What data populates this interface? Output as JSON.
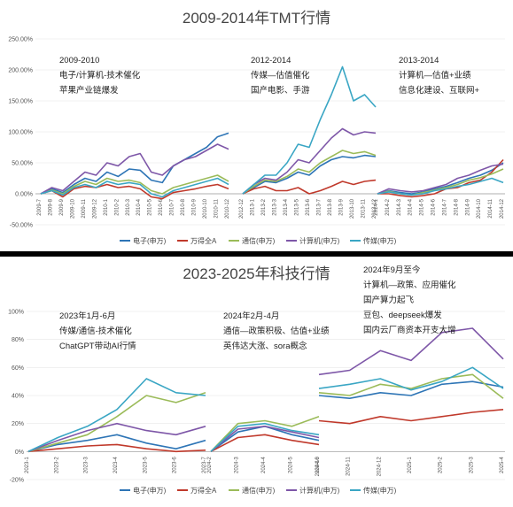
{
  "chart_data": [
    {
      "type": "line",
      "title": "2009-2014年TMT行情",
      "yticks": [
        "250.00%",
        "200.00%",
        "150.00%",
        "100.00%",
        "50.00%",
        "0.00%",
        "-50.00%"
      ],
      "ylim": [
        -50,
        250
      ],
      "grid": true,
      "legend_position": "bottom",
      "segments": [
        {
          "x": [
            "2009-7",
            "2009-8",
            "2009-9",
            "2009-10",
            "2009-11",
            "2009-12",
            "2010-1",
            "2010-2",
            "2010-3",
            "2010-4",
            "2010-5",
            "2010-6",
            "2010-7",
            "2010-8",
            "2010-9",
            "2010-10",
            "2010-11",
            "2010-12"
          ],
          "annotation": [
            "2009-2010",
            "电子/计算机-技术催化",
            "苹果产业链爆发"
          ],
          "series": [
            {
              "name": "电子(申万)",
              "values": [
                0,
                8,
                2,
                15,
                25,
                20,
                35,
                28,
                40,
                38,
                22,
                18,
                45,
                55,
                65,
                75,
                92,
                98
              ]
            },
            {
              "name": "万得全A",
              "values": [
                0,
                5,
                -5,
                8,
                12,
                10,
                15,
                10,
                12,
                8,
                -5,
                -8,
                2,
                5,
                8,
                12,
                15,
                8
              ]
            },
            {
              "name": "通信(申万)",
              "values": [
                0,
                6,
                0,
                12,
                20,
                15,
                25,
                20,
                22,
                18,
                5,
                0,
                10,
                15,
                20,
                25,
                30,
                20
              ]
            },
            {
              "name": "计算机(申万)",
              "values": [
                0,
                10,
                5,
                20,
                35,
                30,
                50,
                45,
                60,
                65,
                35,
                30,
                45,
                55,
                60,
                70,
                80,
                72
              ]
            },
            {
              "name": "传媒(申万)",
              "values": [
                0,
                5,
                -2,
                10,
                15,
                10,
                20,
                15,
                18,
                15,
                0,
                -5,
                5,
                10,
                15,
                20,
                25,
                15
              ]
            }
          ]
        },
        {
          "x": [
            "2012-12",
            "2013-1",
            "2013-2",
            "2013-3",
            "2013-4",
            "2013-5",
            "2013-6",
            "2013-7",
            "2013-8",
            "2013-9",
            "2013-10",
            "2013-11",
            "2013-12"
          ],
          "annotation": [
            "2012-2014",
            "传媒—估值催化",
            "国产电影、手游"
          ],
          "series": [
            {
              "name": "电子(申万)",
              "values": [
                0,
                10,
                20,
                18,
                25,
                35,
                30,
                45,
                55,
                60,
                58,
                62,
                60
              ]
            },
            {
              "name": "万得全A",
              "values": [
                0,
                8,
                12,
                5,
                5,
                10,
                0,
                5,
                12,
                20,
                15,
                20,
                22
              ]
            },
            {
              "name": "通信(申万)",
              "values": [
                0,
                12,
                22,
                20,
                28,
                40,
                35,
                50,
                60,
                70,
                65,
                68,
                62
              ]
            },
            {
              "name": "计算机(申万)",
              "values": [
                0,
                15,
                25,
                22,
                35,
                55,
                50,
                70,
                90,
                105,
                95,
                100,
                98
              ]
            },
            {
              "name": "传媒(申万)",
              "values": [
                0,
                15,
                30,
                30,
                50,
                80,
                75,
                120,
                160,
                205,
                150,
                160,
                140
              ]
            }
          ]
        },
        {
          "x": [
            "2014-1",
            "2014-2",
            "2014-3",
            "2014-4",
            "2014-5",
            "2014-6",
            "2014-7",
            "2014-8",
            "2014-9",
            "2014-10",
            "2014-11",
            "2014-12"
          ],
          "annotation": [
            "2013-2014",
            "计算机—估值+业绩",
            "信息化建设、互联网+"
          ],
          "series": [
            {
              "name": "电子(申万)",
              "values": [
                0,
                5,
                2,
                0,
                3,
                8,
                12,
                18,
                25,
                30,
                38,
                50
              ]
            },
            {
              "name": "万得全A",
              "values": [
                0,
                0,
                -3,
                -5,
                -3,
                0,
                8,
                10,
                18,
                22,
                35,
                55
              ]
            },
            {
              "name": "通信(申万)",
              "values": [
                0,
                4,
                0,
                -2,
                2,
                6,
                10,
                15,
                22,
                26,
                32,
                40
              ]
            },
            {
              "name": "计算机(申万)",
              "values": [
                0,
                8,
                5,
                3,
                5,
                10,
                15,
                25,
                30,
                38,
                45,
                48
              ]
            },
            {
              "name": "传媒(申万)",
              "values": [
                0,
                3,
                0,
                -2,
                0,
                5,
                8,
                12,
                15,
                20,
                25,
                18
              ]
            }
          ]
        }
      ]
    },
    {
      "type": "line",
      "title": "2023-2025年科技行情",
      "yticks": [
        "100%",
        "80%",
        "60%",
        "40%",
        "20%",
        "0%",
        "-20%"
      ],
      "ylim": [
        -20,
        100
      ],
      "grid": true,
      "legend_position": "bottom",
      "segments": [
        {
          "x": [
            "2023-1",
            "2023-2",
            "2023-3",
            "2023-4",
            "2023-5",
            "2023-6",
            "2023-7"
          ],
          "annotation": [
            "2023年1月-6月",
            "传媒/通信-技术催化",
            "ChatGPT带动AI行情"
          ],
          "series": [
            {
              "name": "电子(申万)",
              "values": [
                0,
                5,
                8,
                12,
                6,
                2,
                8
              ]
            },
            {
              "name": "万得全A",
              "values": [
                0,
                2,
                4,
                5,
                2,
                0,
                1
              ]
            },
            {
              "name": "通信(申万)",
              "values": [
                0,
                6,
                12,
                25,
                40,
                35,
                42
              ]
            },
            {
              "name": "计算机(申万)",
              "values": [
                0,
                8,
                15,
                20,
                15,
                12,
                18
              ]
            },
            {
              "name": "传媒(申万)",
              "values": [
                0,
                10,
                18,
                30,
                52,
                42,
                40
              ]
            }
          ]
        },
        {
          "x": [
            "2024-2",
            "2024-3",
            "2024-4",
            "2024-5",
            "2024-6"
          ],
          "annotation": [
            "2024年2月-4月",
            "通信—政策积极、估值+业绩",
            "英伟达大涨、sora概念"
          ],
          "series": [
            {
              "name": "电子(申万)",
              "values": [
                0,
                14,
                18,
                12,
                8
              ]
            },
            {
              "name": "万得全A",
              "values": [
                0,
                10,
                12,
                8,
                5
              ]
            },
            {
              "name": "通信(申万)",
              "values": [
                0,
                20,
                22,
                18,
                25
              ]
            },
            {
              "name": "计算机(申万)",
              "values": [
                0,
                16,
                18,
                14,
                10
              ]
            },
            {
              "name": "传媒(申万)",
              "values": [
                0,
                18,
                20,
                15,
                12
              ]
            }
          ]
        },
        {
          "x": [
            "2024-10",
            "2024-11",
            "2024-12",
            "2025-1",
            "2025-2",
            "2025-3",
            "2025-4"
          ],
          "annotation": [
            "2024年9月至今",
            "计算机—政策、应用催化",
            "国产算力起飞",
            "豆包、deepseek爆发",
            "国内云厂商资本开支大增"
          ],
          "series": [
            {
              "name": "电子(申万)",
              "values": [
                40,
                38,
                42,
                40,
                48,
                50,
                46
              ]
            },
            {
              "name": "万得全A",
              "values": [
                22,
                20,
                25,
                22,
                25,
                28,
                30
              ]
            },
            {
              "name": "通信(申万)",
              "values": [
                42,
                40,
                48,
                45,
                52,
                55,
                38
              ]
            },
            {
              "name": "计算机(申万)",
              "values": [
                55,
                58,
                72,
                65,
                85,
                88,
                66
              ]
            },
            {
              "name": "传媒(申万)",
              "values": [
                45,
                48,
                52,
                44,
                50,
                60,
                45
              ]
            }
          ]
        }
      ]
    }
  ],
  "series_colors": [
    "#2E75B6",
    "#C0392B",
    "#9BBB59",
    "#7E57A8",
    "#3AA6C4"
  ],
  "legend": [
    "电子(申万)",
    "万得全A",
    "通信(申万)",
    "计算机(申万)",
    "传媒(申万)"
  ]
}
